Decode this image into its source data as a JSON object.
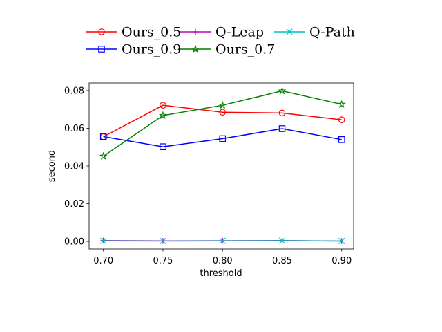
{
  "chart_data": {
    "type": "line",
    "title": "",
    "xlabel": "threshold",
    "ylabel": "second",
    "x": [
      0.7,
      0.75,
      0.8,
      0.85,
      0.9
    ],
    "x_tick_labels": [
      "0.70",
      "0.75",
      "0.80",
      "0.85",
      "0.90"
    ],
    "xlim": [
      0.688,
      0.91
    ],
    "ylim": [
      -0.004,
      0.084
    ],
    "y_ticks": [
      0.0,
      0.02,
      0.04,
      0.06,
      0.08
    ],
    "y_tick_labels": [
      "0.00",
      "0.02",
      "0.04",
      "0.06",
      "0.08"
    ],
    "grid": false,
    "legend_position": "top-center",
    "series": [
      {
        "name": "Ours_0.5",
        "color": "#ff0000",
        "marker": "circle",
        "values": [
          0.0555,
          0.0722,
          0.0685,
          0.0681,
          0.0645
        ]
      },
      {
        "name": "Ours_0.9",
        "color": "#0000ff",
        "marker": "square",
        "values": [
          0.0556,
          0.0502,
          0.0545,
          0.0598,
          0.054
        ]
      },
      {
        "name": "Q-Leap",
        "color": "#bf00bf",
        "marker": "plus",
        "values": [
          0.0005,
          0.0003,
          0.0004,
          0.0005,
          0.0002
        ]
      },
      {
        "name": "Ours_0.7",
        "color": "#008000",
        "marker": "star",
        "values": [
          0.0452,
          0.0668,
          0.0722,
          0.0798,
          0.0727
        ]
      },
      {
        "name": "Q-Path",
        "color": "#00bfbf",
        "marker": "x",
        "values": [
          0.0003,
          0.0002,
          0.0003,
          0.0004,
          0.0002
        ]
      }
    ]
  }
}
